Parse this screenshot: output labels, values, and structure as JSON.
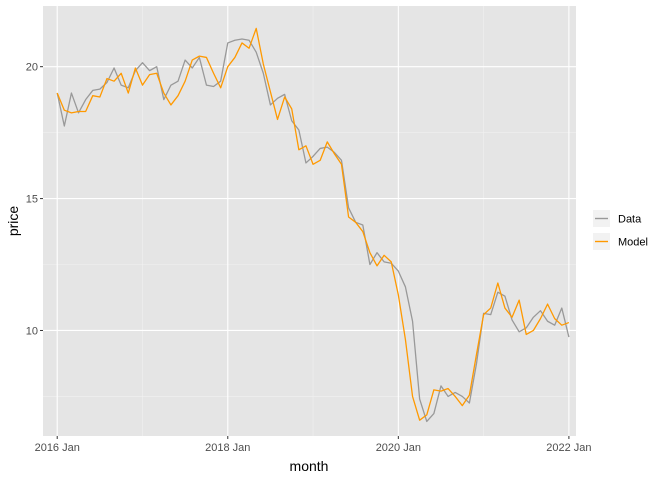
{
  "chart_data": {
    "type": "line",
    "xlabel": "month",
    "ylabel": "price",
    "x_ticks": [
      "2016 Jan",
      "2018 Jan",
      "2020 Jan",
      "2022 Jan"
    ],
    "y_ticks": [
      "10",
      "15",
      "20"
    ],
    "x_start": "2016-01",
    "xlim": [
      "2015-11",
      "2022-02"
    ],
    "ylim": [
      6.0,
      22.3
    ],
    "grid": true,
    "legend_position": "right",
    "panel_background": "#e5e5e5",
    "series": [
      {
        "name": "Data",
        "color": "#999999",
        "values": [
          19.0,
          17.75,
          19.0,
          18.25,
          18.75,
          19.1,
          19.15,
          19.4,
          19.95,
          19.3,
          19.2,
          19.85,
          20.15,
          19.85,
          20.0,
          18.75,
          19.3,
          19.45,
          20.25,
          19.95,
          20.35,
          19.3,
          19.25,
          19.45,
          20.9,
          21.0,
          21.05,
          21.0,
          20.55,
          19.75,
          18.55,
          18.8,
          18.95,
          17.95,
          17.6,
          16.35,
          16.6,
          16.9,
          16.95,
          16.75,
          16.45,
          14.65,
          14.1,
          14.0,
          12.5,
          12.95,
          12.6,
          12.55,
          12.25,
          11.65,
          10.35,
          7.4,
          6.55,
          6.85,
          7.9,
          7.5,
          7.65,
          7.5,
          7.25,
          8.75,
          10.65,
          10.6,
          11.45,
          11.3,
          10.4,
          9.95,
          10.1,
          10.5,
          10.75,
          10.35,
          10.2,
          10.85,
          9.75
        ]
      },
      {
        "name": "Model",
        "color": "#ff9900",
        "values": [
          19.0,
          18.35,
          18.25,
          18.3,
          18.3,
          18.9,
          18.85,
          19.55,
          19.45,
          19.75,
          19.0,
          19.95,
          19.3,
          19.7,
          19.75,
          19.0,
          18.55,
          18.9,
          19.45,
          20.25,
          20.4,
          20.35,
          19.75,
          19.2,
          20.0,
          20.35,
          20.9,
          20.7,
          21.45,
          20.1,
          19.05,
          18.0,
          18.85,
          18.4,
          16.85,
          17.0,
          16.3,
          16.45,
          17.15,
          16.7,
          16.3,
          14.3,
          14.1,
          13.75,
          12.95,
          12.45,
          12.85,
          12.6,
          11.35,
          9.65,
          7.5,
          6.6,
          6.8,
          7.75,
          7.7,
          7.8,
          7.5,
          7.15,
          7.55,
          9.1,
          10.6,
          10.85,
          11.8,
          10.85,
          10.5,
          11.15,
          9.85,
          10.0,
          10.45,
          11.0,
          10.45,
          10.2,
          10.3
        ]
      }
    ]
  }
}
